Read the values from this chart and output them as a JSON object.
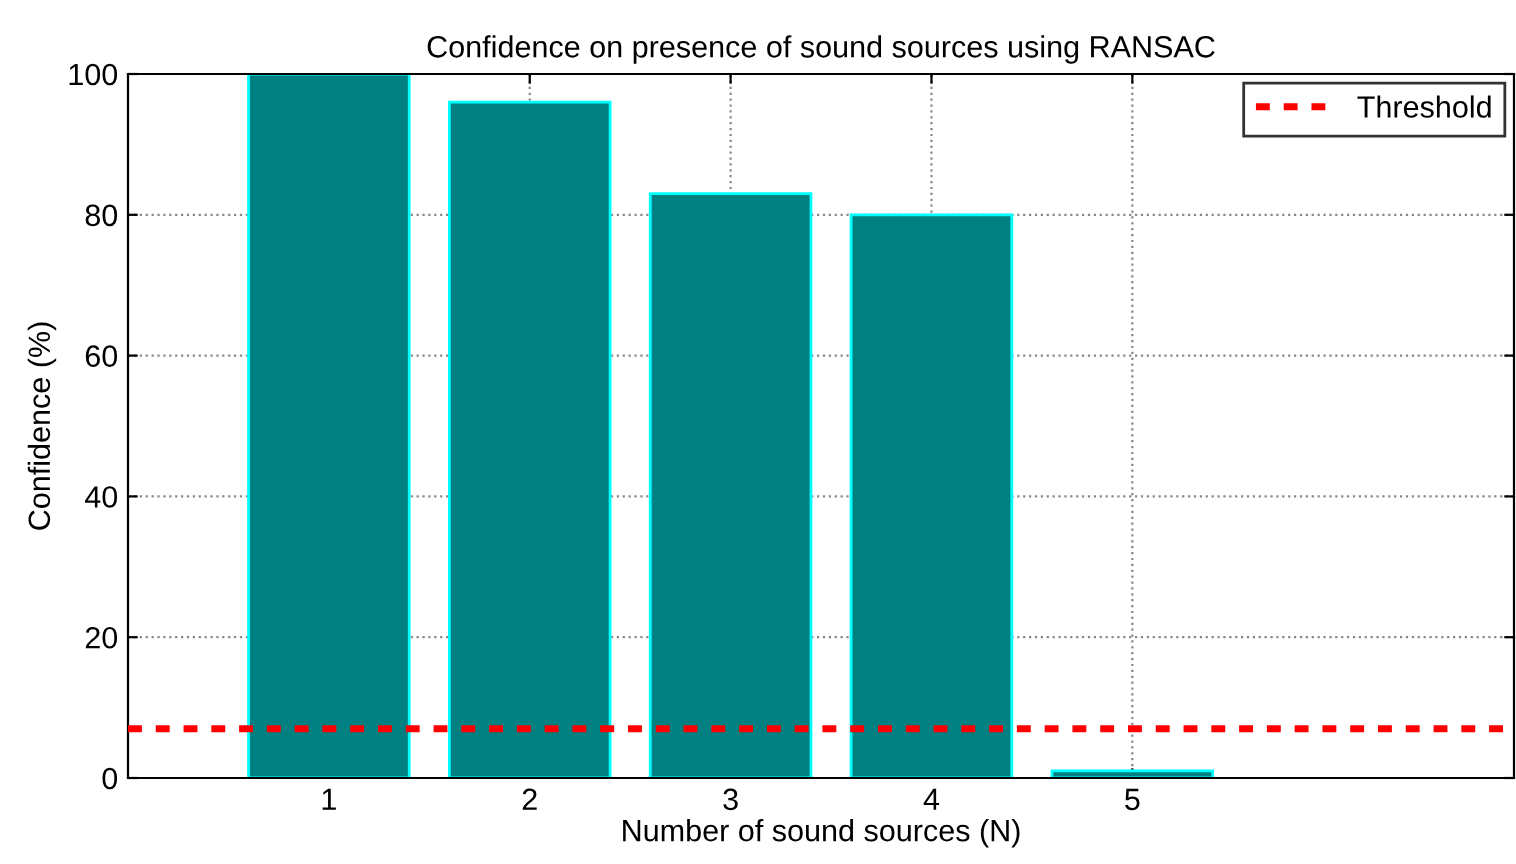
{
  "chart_data": {
    "type": "bar",
    "title": "Confidence on presence of sound sources using RANSAC",
    "xlabel": "Number of sound sources (N)",
    "ylabel": "Confidence (%)",
    "x": [
      1,
      2,
      3,
      4,
      5
    ],
    "values": [
      100,
      96,
      83,
      80,
      1
    ],
    "color": "#008080",
    "xlim": [
      0,
      6.9
    ],
    "xticks": [
      1,
      2,
      3,
      4,
      5
    ],
    "ylim": [
      0,
      100
    ],
    "yticks": [
      0,
      20,
      40,
      60,
      80,
      100
    ],
    "ref_lines": [
      {
        "axis": "y",
        "value": 7,
        "label": "Threshold",
        "color": "#ff0000",
        "line_style": "dashed"
      }
    ],
    "grid": true,
    "legend": "top right"
  }
}
